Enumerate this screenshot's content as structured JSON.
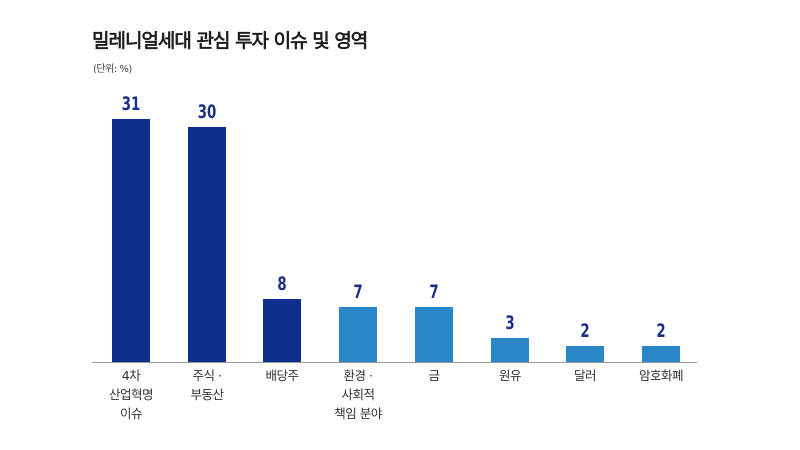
{
  "title": "밀레니얼세대 관심 투자 이슈 및 영역",
  "unit": "(단위: %)",
  "colors": {
    "primary": "#0d2f8a",
    "secondary": "#2a86c7",
    "value_label": "#1c2f86"
  },
  "chart_data": {
    "type": "bar",
    "title": "밀레니얼세대 관심 투자 이슈 및 영역",
    "subtitle": "(단위: %)",
    "xlabel": "",
    "ylabel": "%",
    "ylim": [
      0,
      31
    ],
    "grid": false,
    "legend": null,
    "categories": [
      "4차\n산업혁명\n이슈",
      "주식 ·\n부동산",
      "배당주",
      "환경 ·\n사회적\n책임 분야",
      "금",
      "원유",
      "달러",
      "암호화폐"
    ],
    "values": [
      31,
      30,
      8,
      7,
      7,
      3,
      2,
      2
    ],
    "bar_colors": [
      "#0d2f8a",
      "#0d2f8a",
      "#0d2f8a",
      "#2a86c7",
      "#2a86c7",
      "#2a86c7",
      "#2a86c7",
      "#2a86c7"
    ]
  },
  "bars": [
    {
      "label": "4차\n산업혁명\n이슈",
      "value": "31"
    },
    {
      "label": "주식 ·\n부동산",
      "value": "30"
    },
    {
      "label": "배당주",
      "value": "8"
    },
    {
      "label": "환경 ·\n사회적\n책임 분야",
      "value": "7"
    },
    {
      "label": "금",
      "value": "7"
    },
    {
      "label": "원유",
      "value": "3"
    },
    {
      "label": "달러",
      "value": "2"
    },
    {
      "label": "암호화폐",
      "value": "2"
    }
  ]
}
